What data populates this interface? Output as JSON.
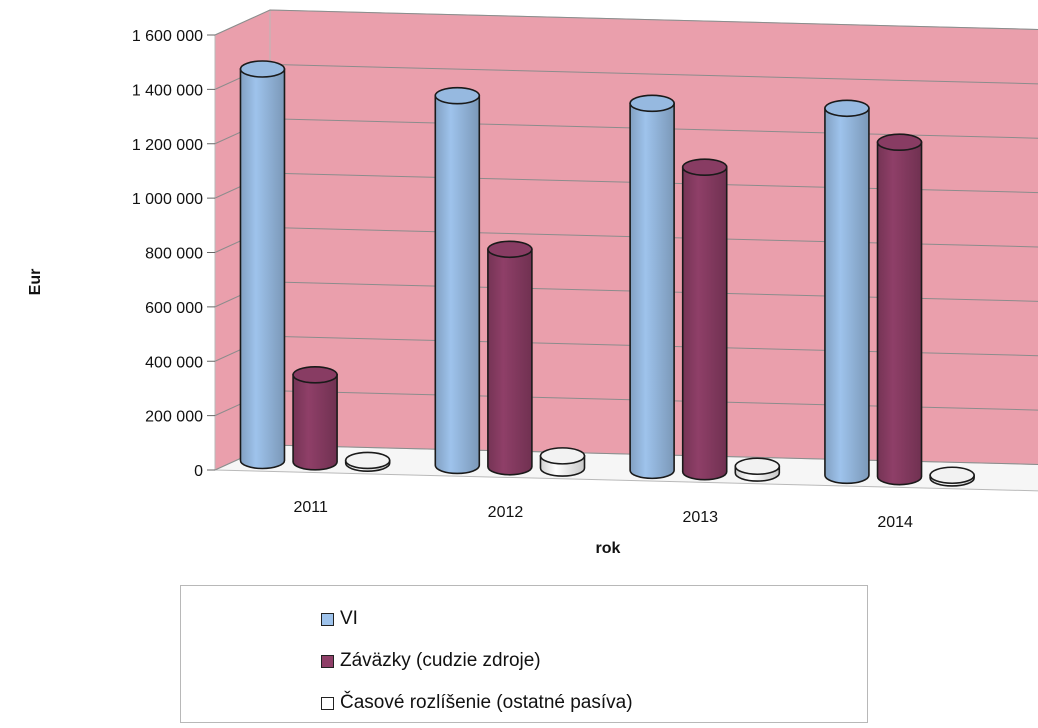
{
  "chart_data": {
    "type": "bar",
    "style": "3d-cylinder",
    "categories": [
      "2011",
      "2012",
      "2013",
      "2014"
    ],
    "series": [
      {
        "name": "VI",
        "values": [
          1440000,
          1360000,
          1350000,
          1350000
        ],
        "color": "#9ec3ec"
      },
      {
        "name": "Záväzky (cudzie zdroje)",
        "values": [
          320000,
          800000,
          1120000,
          1230000
        ],
        "color": "#8f3f68"
      },
      {
        "name": "Časové rozlíšenie (ostatné pasíva)",
        "values": [
          10000,
          45000,
          25000,
          10000
        ],
        "color": "#ffffff"
      }
    ],
    "xlabel": "rok",
    "ylabel": "Eur",
    "ylim": [
      0,
      1600000
    ],
    "yticks": [
      "0",
      "200 000",
      "400 000",
      "600 000",
      "800 000",
      "1 000 000",
      "1 200 000",
      "1 400 000",
      "1 600 000"
    ],
    "grid": true,
    "legend_position": "bottom",
    "wall_color": "#ea9fac"
  }
}
